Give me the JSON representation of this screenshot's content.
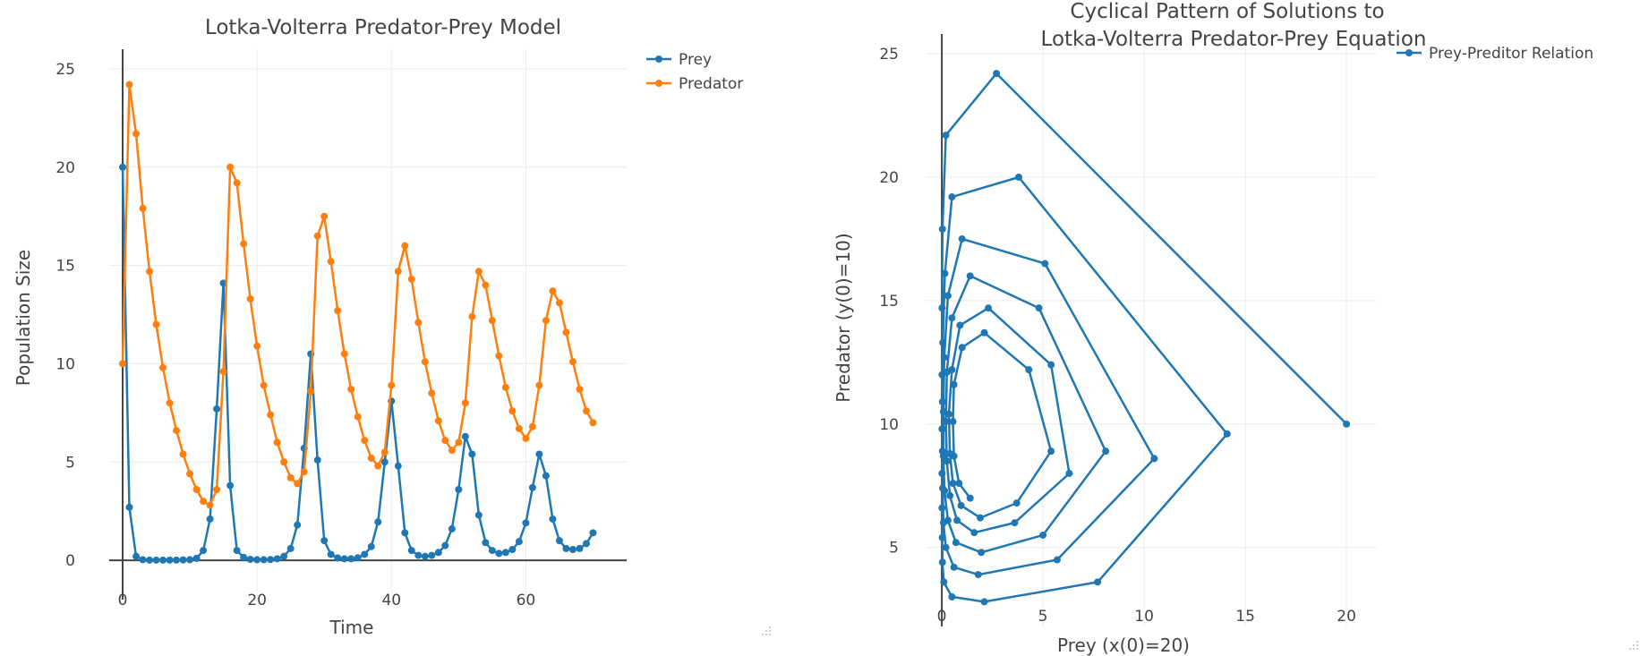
{
  "chart_data": [
    {
      "type": "line",
      "title": "Lotka-Volterra Predator-Prey Model",
      "xlabel": "Time",
      "ylabel": "Population Size",
      "xlim": [
        -2,
        75
      ],
      "ylim": [
        -2,
        26
      ],
      "xticks": [
        0,
        20,
        40,
        60
      ],
      "yticks": [
        0,
        5,
        10,
        15,
        20,
        25
      ],
      "grid": true,
      "legend_position": "top-right",
      "series": [
        {
          "name": "Prey",
          "color": "#1f77b4",
          "x": [
            0,
            1,
            2,
            3,
            4,
            5,
            6,
            7,
            8,
            9,
            10,
            11,
            12,
            13,
            14,
            15,
            16,
            17,
            18,
            19,
            20,
            21,
            22,
            23,
            24,
            25,
            26,
            27,
            28,
            29,
            30,
            31,
            32,
            33,
            34,
            35,
            36,
            37,
            38,
            39,
            40,
            41,
            42,
            43,
            44,
            45,
            46,
            47,
            48,
            49,
            50,
            51,
            52,
            53,
            54,
            55,
            56,
            57,
            58,
            59,
            60,
            61,
            62,
            63,
            64,
            65,
            66,
            67,
            68,
            69,
            70
          ],
          "y": [
            20,
            2.7,
            0.2,
            0.03,
            0.01,
            0.01,
            0.01,
            0.01,
            0.01,
            0.02,
            0.03,
            0.1,
            0.5,
            2.1,
            7.7,
            14.1,
            3.8,
            0.5,
            0.15,
            0.05,
            0.03,
            0.03,
            0.04,
            0.08,
            0.2,
            0.6,
            1.8,
            5.7,
            10.5,
            5.1,
            1.0,
            0.3,
            0.12,
            0.08,
            0.08,
            0.13,
            0.3,
            0.7,
            1.95,
            5.0,
            8.1,
            4.8,
            1.4,
            0.5,
            0.25,
            0.2,
            0.25,
            0.4,
            0.75,
            1.6,
            3.6,
            6.3,
            5.4,
            2.3,
            0.9,
            0.5,
            0.35,
            0.4,
            0.55,
            0.95,
            1.9,
            3.7,
            5.4,
            4.3,
            2.1,
            1.0,
            0.6,
            0.55,
            0.6,
            0.85,
            1.4
          ]
        },
        {
          "name": "Predator",
          "color": "#ff7f0e",
          "x": [
            0,
            1,
            2,
            3,
            4,
            5,
            6,
            7,
            8,
            9,
            10,
            11,
            12,
            13,
            14,
            15,
            16,
            17,
            18,
            19,
            20,
            21,
            22,
            23,
            24,
            25,
            26,
            27,
            28,
            29,
            30,
            31,
            32,
            33,
            34,
            35,
            36,
            37,
            38,
            39,
            40,
            41,
            42,
            43,
            44,
            45,
            46,
            47,
            48,
            49,
            50,
            51,
            52,
            53,
            54,
            55,
            56,
            57,
            58,
            59,
            60,
            61,
            62,
            63,
            64,
            65,
            66,
            67,
            68,
            69,
            70
          ],
          "y": [
            10,
            24.2,
            21.7,
            17.9,
            14.7,
            12.0,
            9.8,
            8.0,
            6.6,
            5.4,
            4.4,
            3.6,
            3.0,
            2.8,
            3.6,
            9.6,
            20.0,
            19.2,
            16.1,
            13.3,
            10.9,
            8.9,
            7.4,
            6.0,
            5.0,
            4.2,
            3.9,
            4.5,
            8.6,
            16.5,
            17.5,
            15.2,
            12.7,
            10.5,
            8.7,
            7.3,
            6.1,
            5.2,
            4.8,
            5.5,
            8.9,
            14.7,
            16.0,
            14.3,
            12.1,
            10.1,
            8.5,
            7.1,
            6.1,
            5.6,
            6.0,
            8.0,
            12.4,
            14.7,
            14.0,
            12.2,
            10.4,
            8.8,
            7.6,
            6.7,
            6.2,
            6.8,
            8.9,
            12.2,
            13.7,
            13.1,
            11.6,
            10.1,
            8.7,
            7.6,
            7.0
          ]
        }
      ]
    },
    {
      "type": "line",
      "title": "Cyclical Pattern of Solutions to Lotka-Volterra Predator-Prey Equation",
      "title_lines": [
        "Cyclical Pattern of Solutions to",
        "Lotka-Volterra Predator-Prey Equation"
      ],
      "xlabel": "Prey (x(0)=20)",
      "ylabel": "Predator (y(0)=10)",
      "xlim": [
        -0.8,
        21.5
      ],
      "ylim": [
        1.8,
        25.8
      ],
      "xticks": [
        0,
        5,
        10,
        15,
        20
      ],
      "yticks": [
        5,
        10,
        15,
        20,
        25
      ],
      "grid": true,
      "legend_position": "top-right",
      "series": [
        {
          "name": "Prey-Preditor Relation",
          "color": "#1f77b4",
          "x": [
            20,
            2.7,
            0.2,
            0.03,
            0.01,
            0.01,
            0.01,
            0.01,
            0.01,
            0.02,
            0.03,
            0.1,
            0.5,
            2.1,
            7.7,
            14.1,
            3.8,
            0.5,
            0.15,
            0.05,
            0.03,
            0.03,
            0.04,
            0.08,
            0.2,
            0.6,
            1.8,
            5.7,
            10.5,
            5.1,
            1.0,
            0.3,
            0.12,
            0.08,
            0.08,
            0.13,
            0.3,
            0.7,
            1.95,
            5.0,
            8.1,
            4.8,
            1.4,
            0.5,
            0.25,
            0.2,
            0.25,
            0.4,
            0.75,
            1.6,
            3.6,
            6.3,
            5.4,
            2.3,
            0.9,
            0.5,
            0.35,
            0.4,
            0.55,
            0.95,
            1.9,
            3.7,
            5.4,
            4.3,
            2.1,
            1.0,
            0.6,
            0.55,
            0.6,
            0.85,
            1.4
          ],
          "y": [
            10,
            24.2,
            21.7,
            17.9,
            14.7,
            12.0,
            9.8,
            8.0,
            6.6,
            5.4,
            4.4,
            3.6,
            3.0,
            2.8,
            3.6,
            9.6,
            20.0,
            19.2,
            16.1,
            13.3,
            10.9,
            8.9,
            7.4,
            6.0,
            5.0,
            4.2,
            3.9,
            4.5,
            8.6,
            16.5,
            17.5,
            15.2,
            12.7,
            10.5,
            8.7,
            7.3,
            6.1,
            5.2,
            4.8,
            5.5,
            8.9,
            14.7,
            16.0,
            14.3,
            12.1,
            10.1,
            8.5,
            7.1,
            6.1,
            5.6,
            6.0,
            8.0,
            12.4,
            14.7,
            14.0,
            12.2,
            10.4,
            8.8,
            7.6,
            6.7,
            6.2,
            6.8,
            8.9,
            12.2,
            13.7,
            13.1,
            11.6,
            10.1,
            8.7,
            7.6,
            7.0
          ]
        }
      ]
    }
  ]
}
